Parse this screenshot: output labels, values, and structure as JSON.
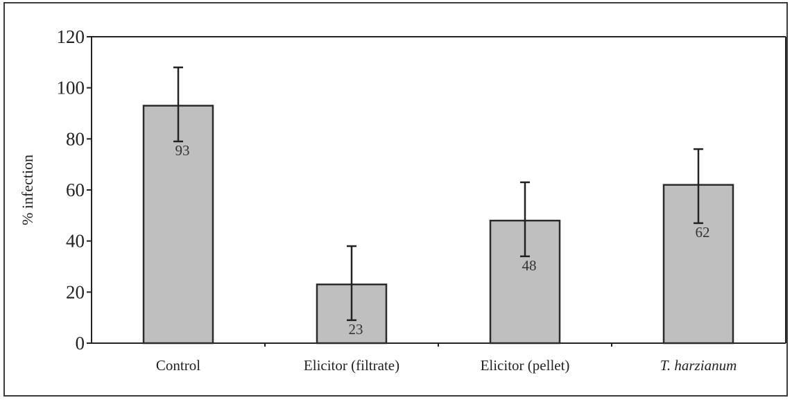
{
  "chart_data": {
    "type": "bar",
    "categories": [
      "Control",
      "Elicitor (filtrate)",
      "Elicitor (pellet)",
      "T. harzianum"
    ],
    "category_styles": [
      "normal",
      "normal",
      "normal",
      "italic"
    ],
    "values": [
      93,
      23,
      48,
      62
    ],
    "data_labels": [
      "93",
      "23",
      "48",
      "62"
    ],
    "error_bars": [
      {
        "low": 79,
        "high": 108
      },
      {
        "low": 9,
        "high": 38
      },
      {
        "low": 34,
        "high": 63
      },
      {
        "low": 47,
        "high": 76
      }
    ],
    "ylabel": "% infection",
    "xlabel": "",
    "ylim": [
      0,
      120
    ],
    "yticks": [
      0,
      20,
      40,
      60,
      80,
      100,
      120
    ],
    "grid": false,
    "colors": {
      "bar_fill": "#bfbfbf",
      "bar_stroke": "#2b2b2b",
      "axis": "#222222"
    }
  }
}
